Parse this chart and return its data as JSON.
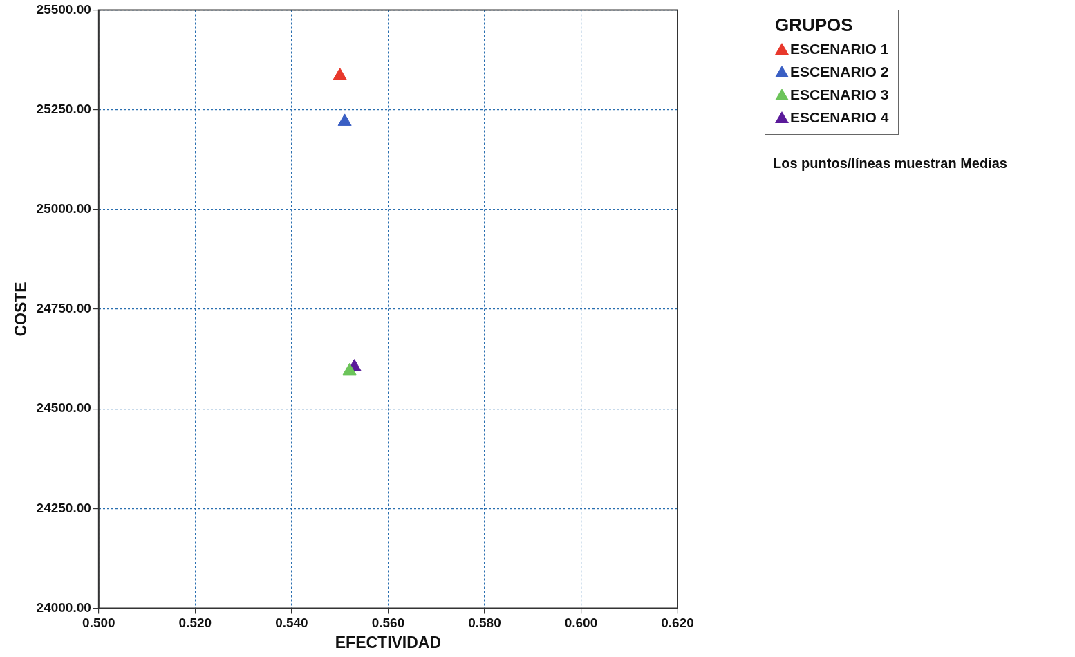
{
  "chart_data": {
    "type": "scatter",
    "xlabel": "EFECTIVIDAD",
    "ylabel": "COSTE",
    "legend_title": "GRUPOS",
    "legend": "right",
    "grid": true,
    "marker": "triangle",
    "annotations": [
      "Los puntos/líneas muestran Medias"
    ],
    "xlim": [
      0.5,
      0.62
    ],
    "xticks": [
      {
        "value": 0.5,
        "label": "0.500"
      },
      {
        "value": 0.52,
        "label": "0.520"
      },
      {
        "value": 0.54,
        "label": "0.540"
      },
      {
        "value": 0.56,
        "label": "0.560"
      },
      {
        "value": 0.58,
        "label": "0.580"
      },
      {
        "value": 0.6,
        "label": "0.600"
      },
      {
        "value": 0.62,
        "label": "0.620"
      }
    ],
    "ylim": [
      24000,
      25500
    ],
    "yticks": [
      {
        "value": 24000,
        "label": "24000.00"
      },
      {
        "value": 24250,
        "label": "24250.00"
      },
      {
        "value": 24500,
        "label": "24500.00"
      },
      {
        "value": 24750,
        "label": "24750.00"
      },
      {
        "value": 25000,
        "label": "25000.00"
      },
      {
        "value": 25250,
        "label": "25250.00"
      },
      {
        "value": 25500,
        "label": "25500.00"
      }
    ],
    "series": [
      {
        "name": "ESCENARIO 1",
        "color": "#e8382c",
        "x": [
          0.55
        ],
        "values": [
          25335
        ]
      },
      {
        "name": "ESCENARIO 2",
        "color": "#3a5fc4",
        "x": [
          0.551
        ],
        "values": [
          25220
        ]
      },
      {
        "name": "ESCENARIO 3",
        "color": "#6cc45a",
        "x": [
          0.552
        ],
        "values": [
          24595
        ]
      },
      {
        "name": "ESCENARIO 4",
        "color": "#5a1a9a",
        "x": [
          0.553
        ],
        "values": [
          24605
        ]
      }
    ]
  }
}
